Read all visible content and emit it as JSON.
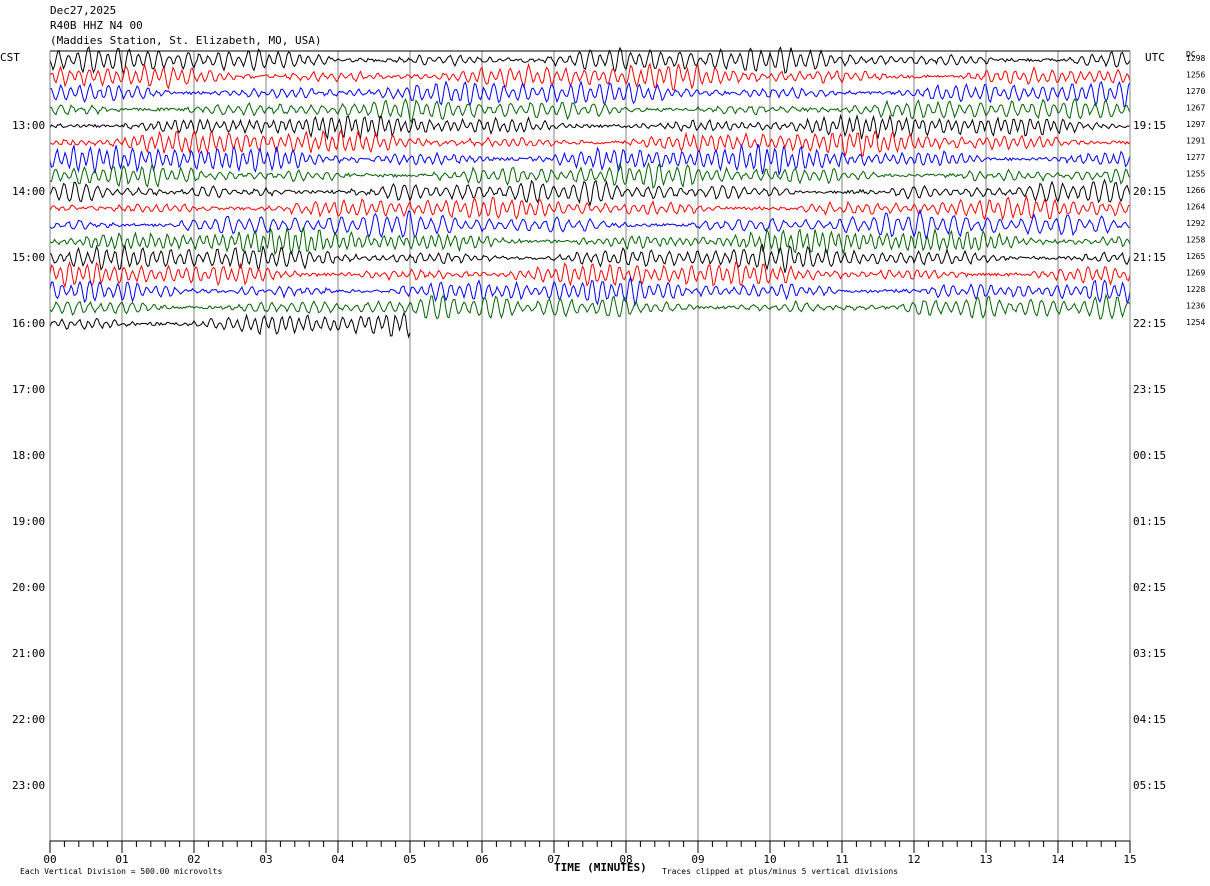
{
  "header": {
    "date": "Dec27,2025",
    "channel": "R40B HHZ N4 00",
    "station": "(Maddies Station, St. Elizabeth, MO, USA)"
  },
  "left_tz": "CST",
  "right_tz": "UTC",
  "dc_label": "DC",
  "footer": {
    "scale_note": "Each Vertical Division =  500.00 microvolts",
    "x_title": "TIME (MINUTES)",
    "clip_note": "Traces clipped at plus/minus 5 vertical divisions"
  },
  "colors": {
    "trace_cycle": [
      "#000000",
      "#ff0000",
      "#0000ff",
      "#006400"
    ],
    "grid": "#808080"
  },
  "chart_data": {
    "type": "line",
    "title": "R40B HHZ N4 00",
    "xlabel": "TIME (MINUTES)",
    "xlim": [
      0,
      15
    ],
    "x_ticks": [
      "00",
      "01",
      "02",
      "03",
      "04",
      "05",
      "06",
      "07",
      "08",
      "09",
      "10",
      "11",
      "12",
      "13",
      "14",
      "15"
    ],
    "left_hour_labels": [
      "13:00",
      "14:00",
      "15:00",
      "16:00",
      "17:00",
      "18:00",
      "19:00",
      "20:00",
      "21:00",
      "22:00",
      "23:00"
    ],
    "right_hour_labels": [
      "19:15",
      "20:15",
      "21:15",
      "22:15",
      "23:15",
      "00:15",
      "01:15",
      "02:15",
      "03:15",
      "04:15",
      "05:15"
    ],
    "minutes_per_trace": 15,
    "first_trace_start": "12:00 CST",
    "trace_dc_offsets": [
      1298,
      1256,
      1270,
      1267,
      1297,
      1291,
      1277,
      1255,
      1266,
      1264,
      1292,
      1258,
      1265,
      1269,
      1228,
      1236,
      1254
    ],
    "traces_plotted": 17,
    "last_trace_end_minute": 5,
    "vertical_division_microvolts": 500,
    "clip_divisions": 5
  }
}
